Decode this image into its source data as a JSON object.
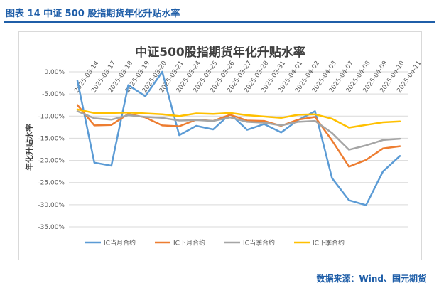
{
  "figure_caption": "图表 14  中证 500 股指期货年化升贴水率",
  "source_note": "数据来源：Wind、国元期货",
  "colors": {
    "caption": "#1f5ea8",
    "axis_text": "#595959",
    "grid": "#d9d9d9"
  },
  "chart_data": {
    "type": "line",
    "title": "中证500股指期货年化升贴水率",
    "xlabel": "",
    "ylabel": "年化升贴水率",
    "ylim": [
      -35,
      0
    ],
    "ytick_step": 5,
    "ytick_labels": [
      "0.00%",
      "-5.00%",
      "-10.00%",
      "-15.00%",
      "-20.00%",
      "-25.00%",
      "-30.00%",
      "-35.00%"
    ],
    "grid": "horizontal",
    "legend_position": "bottom",
    "categories": [
      "2025-03-14",
      "2025-03-17",
      "2025-03-18",
      "2025-03-19",
      "2025-03-20",
      "2025-03-21",
      "2025-03-24",
      "2025-03-25",
      "2025-03-26",
      "2025-03-27",
      "2025-03-28",
      "2025-03-31",
      "2025-04-01",
      "2025-04-02",
      "2025-04-03",
      "2025-04-07",
      "2025-04-08",
      "2025-04-09",
      "2025-04-10",
      "2025-04-11"
    ],
    "series": [
      {
        "name": "IC当月合约",
        "color": "#5b9bd5",
        "values": [
          -2.0,
          -20.5,
          -21.2,
          -3.0,
          -5.5,
          0.0,
          -14.3,
          -12.2,
          -13.0,
          -9.5,
          -13.1,
          -11.8,
          -13.7,
          -10.9,
          -8.9,
          -24.0,
          -29.0,
          -30.1,
          -22.5,
          -19.0
        ]
      },
      {
        "name": "IC下月合约",
        "color": "#ed7d31",
        "values": [
          -7.5,
          -12.1,
          -12.0,
          -9.5,
          -10.3,
          -12.1,
          -12.3,
          -10.8,
          -11.1,
          -9.7,
          -11.0,
          -11.1,
          -12.2,
          -10.8,
          -10.2,
          -15.5,
          -21.4,
          -19.9,
          -17.3,
          -16.8
        ]
      },
      {
        "name": "IC当季合约",
        "color": "#a5a5a5",
        "values": [
          -8.9,
          -10.5,
          -10.8,
          -9.8,
          -10.2,
          -10.4,
          -11.0,
          -10.9,
          -11.1,
          -10.3,
          -11.3,
          -11.5,
          -12.1,
          -11.3,
          -11.1,
          -13.8,
          -17.6,
          -16.6,
          -15.4,
          -15.1
        ]
      },
      {
        "name": "IC下季合约",
        "color": "#ffc000",
        "values": [
          -8.5,
          -9.3,
          -9.3,
          -9.2,
          -9.4,
          -9.6,
          -10.0,
          -9.4,
          -9.5,
          -9.3,
          -9.8,
          -10.1,
          -10.4,
          -9.7,
          -9.6,
          -10.6,
          -12.6,
          -12.0,
          -11.4,
          -11.2
        ]
      }
    ]
  }
}
